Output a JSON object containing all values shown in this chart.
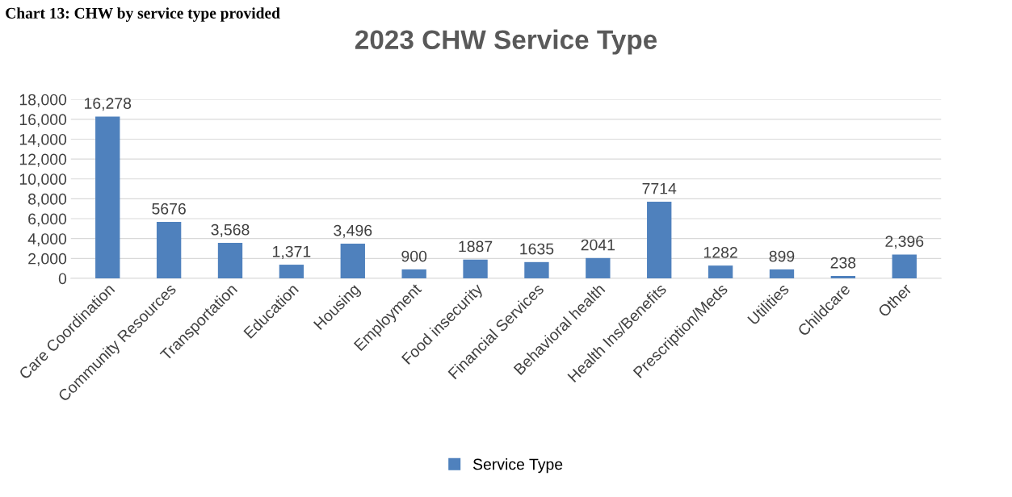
{
  "chart_data": {
    "type": "bar",
    "title": "2023 CHW Service Type",
    "annotations": [
      "Chart 13: CHW by service type provided"
    ],
    "categories": [
      "Care Coordination",
      "Community Resources",
      "Transportation",
      "Education",
      "Housing",
      "Employment",
      "Food insecurity",
      "Financial Services",
      "Behavioral health",
      "Health Ins/Benefits",
      "Prescription/Meds",
      "Utilities",
      "Childcare",
      "Other"
    ],
    "series": [
      {
        "name": "Service Type",
        "color": "#4f81bd",
        "values": [
          16278,
          5676,
          3568,
          1371,
          3496,
          900,
          1887,
          1635,
          2041,
          7714,
          1282,
          899,
          238,
          2396
        ],
        "value_labels": [
          "16,278",
          "5676",
          "3,568",
          "1,371",
          "3,496",
          "900",
          "1887",
          "1635",
          "2041",
          "7714",
          "1282",
          "899",
          "238",
          "2,396"
        ]
      }
    ],
    "ylim": [
      0,
      18000
    ],
    "yticks": [
      0,
      {
        "value": 2000,
        "label": "2,000"
      },
      {
        "value": 4000,
        "label": "4,000"
      },
      {
        "value": 6000,
        "label": "6,000"
      },
      {
        "value": 8000,
        "label": "8,000"
      },
      {
        "value": 10000,
        "label": "10,000"
      },
      {
        "value": 12000,
        "label": "12,000"
      },
      {
        "value": 14000,
        "label": "14,000"
      },
      {
        "value": 16000,
        "label": "16,000"
      },
      {
        "value": 18000,
        "label": "18,000"
      }
    ],
    "grid": "y",
    "legend": "bottom"
  }
}
